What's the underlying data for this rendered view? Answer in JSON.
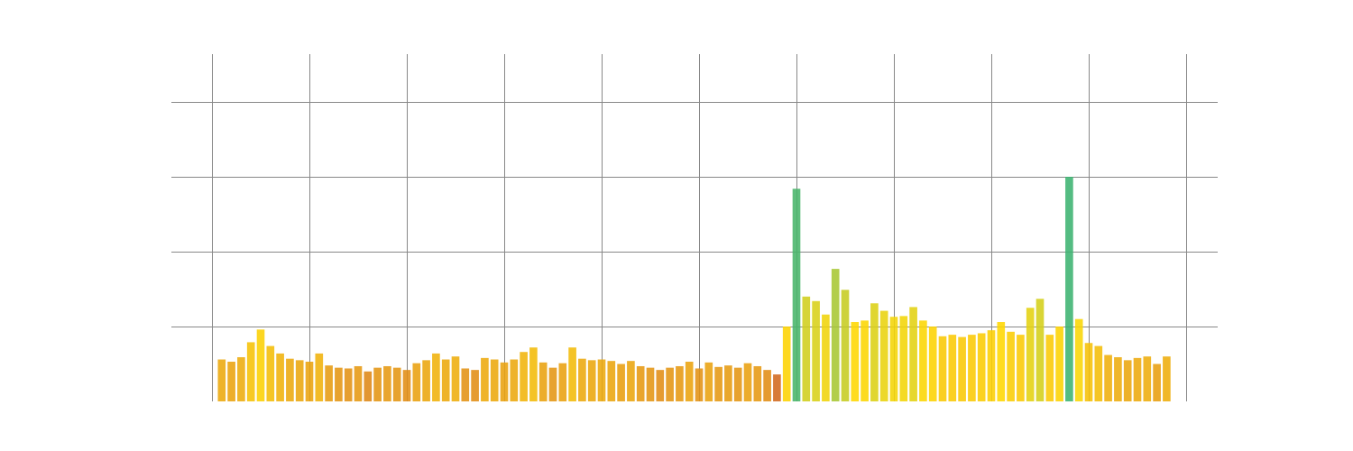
{
  "chart_data": {
    "type": "bar",
    "title": "",
    "xlabel": "",
    "ylabel": "",
    "grid": true,
    "legend": "none",
    "ylim": [
      0,
      4
    ],
    "xlim": [
      0,
      10
    ],
    "x_gridlines": [
      0,
      1,
      2,
      3,
      4,
      5,
      6,
      7,
      8,
      9,
      10
    ],
    "y_gridlines": [
      1,
      2,
      3,
      4
    ],
    "bar_width": 0.08,
    "x": [
      0.1,
      0.2,
      0.3,
      0.4,
      0.5,
      0.6,
      0.7,
      0.8,
      0.9,
      1.0,
      1.1,
      1.2,
      1.3,
      1.4,
      1.5,
      1.6,
      1.7,
      1.8,
      1.9,
      2.0,
      2.1,
      2.2,
      2.3,
      2.4,
      2.5,
      2.6,
      2.7,
      2.8,
      2.9,
      3.0,
      3.1,
      3.2,
      3.3,
      3.4,
      3.5,
      3.6,
      3.7,
      3.8,
      3.9,
      4.0,
      4.1,
      4.2,
      4.3,
      4.4,
      4.5,
      4.6,
      4.7,
      4.8,
      4.9,
      5.0,
      5.1,
      5.2,
      5.3,
      5.4,
      5.5,
      5.6,
      5.7,
      5.8,
      5.9,
      6.0,
      6.1,
      6.2,
      6.3,
      6.4,
      6.5,
      6.6,
      6.7,
      6.8,
      6.9,
      7.0,
      7.1,
      7.2,
      7.3,
      7.4,
      7.5,
      7.6,
      7.7,
      7.8,
      7.9,
      8.0,
      8.1,
      8.2,
      8.3,
      8.4,
      8.5,
      8.6,
      8.7,
      8.8,
      8.9,
      9.0,
      9.1,
      9.2,
      9.3,
      9.4,
      9.5,
      9.6,
      9.7,
      9.8
    ],
    "values": [
      0.56,
      0.53,
      0.59,
      0.79,
      0.96,
      0.74,
      0.64,
      0.57,
      0.55,
      0.53,
      0.64,
      0.48,
      0.45,
      0.44,
      0.47,
      0.4,
      0.45,
      0.47,
      0.45,
      0.42,
      0.51,
      0.55,
      0.64,
      0.56,
      0.6,
      0.44,
      0.42,
      0.58,
      0.56,
      0.52,
      0.56,
      0.66,
      0.72,
      0.52,
      0.45,
      0.51,
      0.72,
      0.57,
      0.55,
      0.56,
      0.54,
      0.5,
      0.54,
      0.47,
      0.45,
      0.42,
      0.45,
      0.47,
      0.53,
      0.44,
      0.52,
      0.46,
      0.48,
      0.45,
      0.51,
      0.47,
      0.42,
      0.36,
      1.0,
      2.84,
      1.4,
      1.34,
      1.16,
      1.77,
      1.49,
      1.06,
      1.08,
      1.31,
      1.21,
      1.13,
      1.14,
      1.26,
      1.08,
      1.0,
      0.87,
      0.89,
      0.86,
      0.89,
      0.91,
      0.95,
      1.06,
      0.93,
      0.89,
      1.25,
      1.37,
      0.89,
      1.0,
      3.0,
      1.1,
      0.78,
      0.74,
      0.62,
      0.59,
      0.55,
      0.58,
      0.6,
      0.5,
      0.6
    ],
    "colors": {
      "low": "#d2691e",
      "mid": "#ffd700",
      "high": "#3cb371"
    }
  }
}
